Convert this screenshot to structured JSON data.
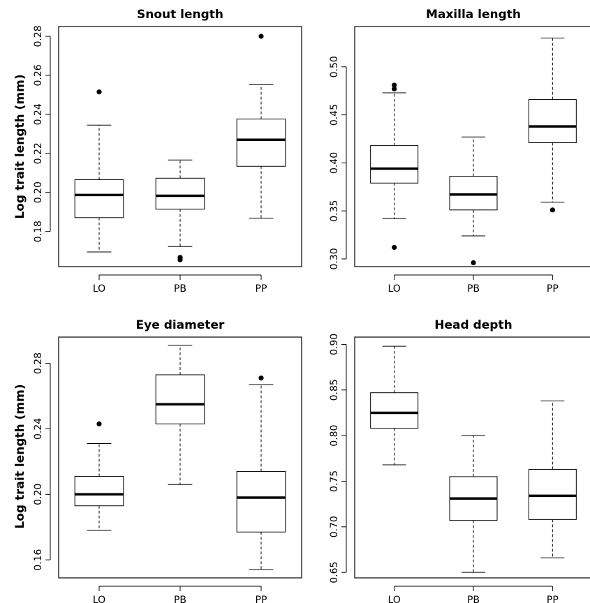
{
  "figure": {
    "ylabel": "Log trait length (mm)"
  },
  "chart_data": [
    {
      "type": "box",
      "title": "Snout length",
      "ylabel": "Log trait length (mm)",
      "categories": [
        "LO",
        "PB",
        "PP"
      ],
      "ylim": [
        0.162,
        0.285
      ],
      "yticks": [
        0.18,
        0.2,
        0.22,
        0.24,
        0.26,
        0.28
      ],
      "boxes": [
        {
          "category": "LO",
          "whisker_low": 0.1695,
          "q1": 0.1871,
          "median": 0.1987,
          "q3": 0.2065,
          "whisker_high": 0.2345,
          "outliers": [
            0.2515
          ]
        },
        {
          "category": "PB",
          "whisker_low": 0.1723,
          "q1": 0.1914,
          "median": 0.1983,
          "q3": 0.2073,
          "whisker_high": 0.2166,
          "outliers": [
            0.1667,
            0.1655
          ]
        },
        {
          "category": "PP",
          "whisker_low": 0.1868,
          "q1": 0.2134,
          "median": 0.227,
          "q3": 0.2376,
          "whisker_high": 0.2552,
          "outliers": [
            0.28
          ]
        }
      ]
    },
    {
      "type": "box",
      "title": "Maxilla length",
      "ylabel": "",
      "categories": [
        "LO",
        "PB",
        "PP"
      ],
      "ylim": [
        0.292,
        0.542
      ],
      "yticks": [
        0.3,
        0.35,
        0.4,
        0.45,
        0.5
      ],
      "boxes": [
        {
          "category": "LO",
          "whisker_low": 0.342,
          "q1": 0.379,
          "median": 0.394,
          "q3": 0.418,
          "whisker_high": 0.473,
          "outliers": [
            0.312,
            0.477,
            0.481
          ]
        },
        {
          "category": "PB",
          "whisker_low": 0.324,
          "q1": 0.351,
          "median": 0.367,
          "q3": 0.386,
          "whisker_high": 0.427,
          "outliers": [
            0.296
          ]
        },
        {
          "category": "PP",
          "whisker_low": 0.359,
          "q1": 0.421,
          "median": 0.438,
          "q3": 0.466,
          "whisker_high": 0.53,
          "outliers": [
            0.351
          ]
        }
      ]
    },
    {
      "type": "box",
      "title": "Eye diameter",
      "ylabel": "Log trait length (mm)",
      "categories": [
        "LO",
        "PB",
        "PP"
      ],
      "ylim": [
        0.149,
        0.296
      ],
      "yticks": [
        0.16,
        0.2,
        0.24,
        0.28
      ],
      "boxes": [
        {
          "category": "LO",
          "whisker_low": 0.178,
          "q1": 0.193,
          "median": 0.2,
          "q3": 0.211,
          "whisker_high": 0.231,
          "outliers": [
            0.243
          ]
        },
        {
          "category": "PB",
          "whisker_low": 0.206,
          "q1": 0.243,
          "median": 0.255,
          "q3": 0.273,
          "whisker_high": 0.291,
          "outliers": []
        },
        {
          "category": "PP",
          "whisker_low": 0.154,
          "q1": 0.177,
          "median": 0.198,
          "q3": 0.214,
          "whisker_high": 0.267,
          "outliers": [
            0.271
          ]
        }
      ]
    },
    {
      "type": "box",
      "title": "Head depth",
      "ylabel": "",
      "categories": [
        "LO",
        "PB",
        "PP"
      ],
      "ylim": [
        0.644,
        0.908
      ],
      "yticks": [
        0.65,
        0.7,
        0.75,
        0.8,
        0.85,
        0.9
      ],
      "boxes": [
        {
          "category": "LO",
          "whisker_low": 0.768,
          "q1": 0.808,
          "median": 0.825,
          "q3": 0.847,
          "whisker_high": 0.898,
          "outliers": []
        },
        {
          "category": "PB",
          "whisker_low": 0.65,
          "q1": 0.707,
          "median": 0.731,
          "q3": 0.755,
          "whisker_high": 0.8,
          "outliers": []
        },
        {
          "category": "PP",
          "whisker_low": 0.666,
          "q1": 0.708,
          "median": 0.734,
          "q3": 0.763,
          "whisker_high": 0.838,
          "outliers": []
        }
      ]
    }
  ]
}
